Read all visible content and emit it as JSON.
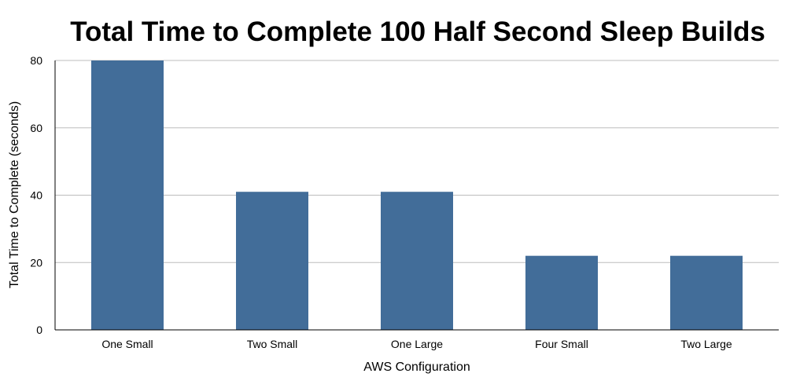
{
  "chart_data": {
    "type": "bar",
    "title": "Total Time to Complete 100 Half Second Sleep Builds",
    "xlabel": "AWS Configuration",
    "ylabel": "Total Time to Complete (seconds)",
    "categories": [
      "One Small",
      "Two Small",
      "One Large",
      "Four Small",
      "Two Large"
    ],
    "values": [
      80,
      41,
      41,
      22,
      22
    ],
    "ylim": [
      0,
      80
    ],
    "yticks": [
      0,
      20,
      40,
      60,
      80
    ],
    "grid": true,
    "legend": "none",
    "colors": {
      "bar": "#426d99"
    }
  }
}
